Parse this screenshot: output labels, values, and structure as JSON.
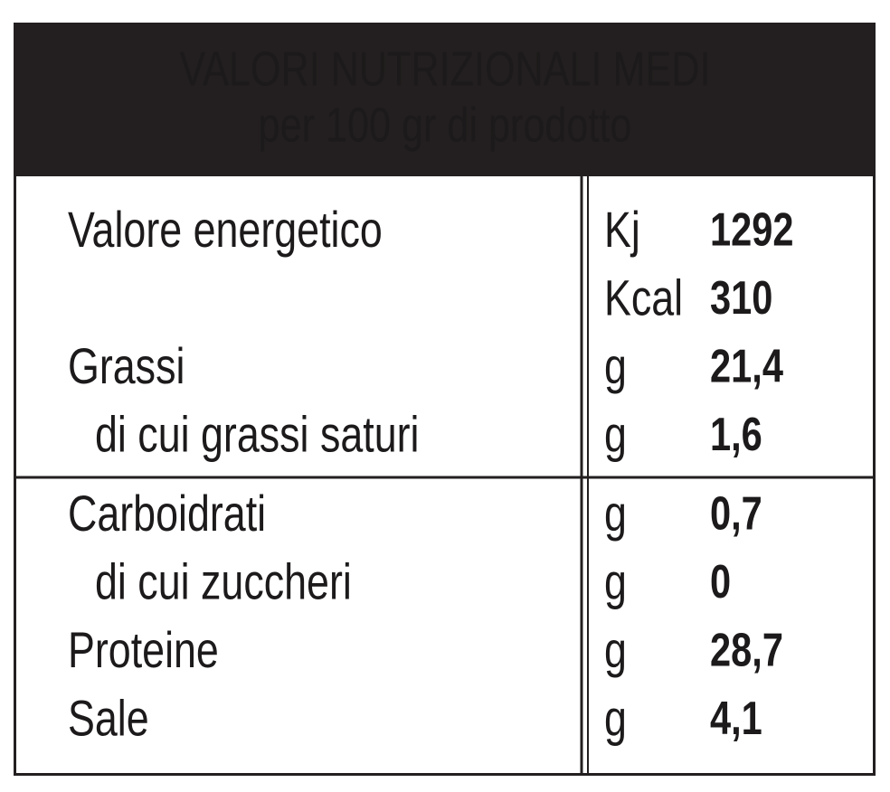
{
  "header": {
    "title": "VALORI NUTRIZIONALI MEDI",
    "subtitle": "per 100 gr di prodotto"
  },
  "table": {
    "sections": [
      {
        "rows": [
          {
            "label": "Valore energetico",
            "amounts": [
              {
                "unit": "Kj",
                "value": "1292"
              },
              {
                "unit": "Kcal",
                "value": "310"
              }
            ]
          },
          {
            "label": "Grassi",
            "amounts": [
              {
                "unit": "g",
                "value": "21,4"
              }
            ],
            "of_which": {
              "label": "di cui grassi saturi",
              "amounts": [
                {
                  "unit": "g",
                  "value": "1,6"
                }
              ]
            }
          }
        ]
      },
      {
        "rows": [
          {
            "label": "Carboidrati",
            "amounts": [
              {
                "unit": "g",
                "value": "0,7"
              }
            ],
            "of_which": {
              "label": "di cui zuccheri",
              "amounts": [
                {
                  "unit": "g",
                  "value": "0"
                }
              ]
            }
          },
          {
            "label": "Proteine",
            "amounts": [
              {
                "unit": "g",
                "value": "28,7"
              }
            ]
          },
          {
            "label": "Sale",
            "amounts": [
              {
                "unit": "g",
                "value": "4,1"
              }
            ]
          }
        ]
      }
    ]
  }
}
